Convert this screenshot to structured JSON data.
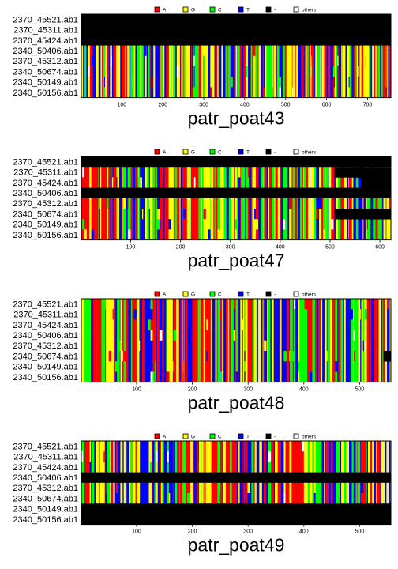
{
  "legend": [
    {
      "label": "A",
      "color": "#ff0000"
    },
    {
      "label": "G",
      "color": "#ffff00"
    },
    {
      "label": "C",
      "color": "#00ff00"
    },
    {
      "label": "T",
      "color": "#0000ff"
    },
    {
      "label": "-",
      "color": "#000000"
    },
    {
      "label": "others",
      "color": "#ffffff"
    }
  ],
  "chart_data": [
    {
      "type": "heatmap",
      "title": "patr_poat43",
      "rows": [
        "2370_45521.ab1",
        "2370_45311.ab1",
        "2370_45424.ab1",
        "2340_50406.ab1",
        "2370_45312.ab1",
        "2340_50674.ab1",
        "2340_50149.ab1",
        "2340_50156.ab1"
      ],
      "xlim": [
        1,
        757
      ],
      "xticks": [
        100,
        200,
        300,
        400,
        500,
        600,
        700
      ],
      "gap_rows": [
        0,
        1,
        2
      ],
      "gap_segments": []
    },
    {
      "type": "heatmap",
      "title": "patr_poat47",
      "rows": [
        "2370_45521.ab1",
        "2370_45311.ab1",
        "2370_45424.ab1",
        "2340_50406.ab1",
        "2370_45312.ab1",
        "2340_50674.ab1",
        "2340_50149.ab1",
        "2340_50156.ab1"
      ],
      "xlim": [
        1,
        622
      ],
      "xticks": [
        100,
        200,
        300,
        400,
        500,
        600
      ],
      "gap_rows": [
        0,
        3
      ],
      "gap_segments": [
        {
          "row": 1,
          "from": 510,
          "to": 622
        },
        {
          "row": 2,
          "from": 562,
          "to": 622
        },
        {
          "row": 5,
          "from": 510,
          "to": 622
        }
      ]
    },
    {
      "type": "heatmap",
      "title": "patr_poat48",
      "rows": [
        "2370_45521.ab1",
        "2370_45311.ab1",
        "2370_45424.ab1",
        "2340_50406.ab1",
        "2370_45312.ab1",
        "2340_50674.ab1",
        "2340_50149.ab1",
        "2340_50156.ab1"
      ],
      "xlim": [
        1,
        556
      ],
      "xticks": [
        100,
        200,
        300,
        400,
        500
      ],
      "gap_rows": [],
      "gap_segments": [
        {
          "row": 5,
          "from": 543,
          "to": 556
        }
      ]
    },
    {
      "type": "heatmap",
      "title": "patr_poat49",
      "rows": [
        "2370_45521.ab1",
        "2370_45311.ab1",
        "2370_45424.ab1",
        "2340_50406.ab1",
        "2370_45312.ab1",
        "2340_50674.ab1",
        "2340_50149.ab1",
        "2340_50156.ab1"
      ],
      "xlim": [
        1,
        556
      ],
      "xticks": [
        100,
        200,
        300,
        400,
        500
      ],
      "gap_rows": [
        3,
        6,
        7
      ],
      "gap_segments": []
    }
  ]
}
